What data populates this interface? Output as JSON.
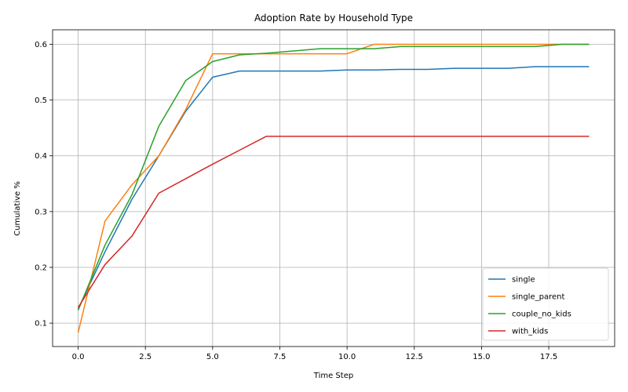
{
  "chart_data": {
    "type": "line",
    "title": "Adoption Rate by Household Type",
    "xlabel": "Time Step",
    "ylabel": "Cumulative %",
    "xlim": [
      -0.95,
      19.95
    ],
    "ylim": [
      0.058,
      0.626
    ],
    "xticks": [
      0.0,
      2.5,
      5.0,
      7.5,
      10.0,
      12.5,
      15.0,
      17.5
    ],
    "xtick_labels": [
      "0.0",
      "2.5",
      "5.0",
      "7.5",
      "10.0",
      "12.5",
      "15.0",
      "17.5"
    ],
    "yticks": [
      0.1,
      0.2,
      0.3,
      0.4,
      0.5,
      0.6
    ],
    "ytick_labels": [
      "0.1",
      "0.2",
      "0.3",
      "0.4",
      "0.5",
      "0.6"
    ],
    "grid": true,
    "legend_position": "lower-right",
    "x": [
      0,
      1,
      2,
      3,
      4,
      5,
      6,
      7,
      8,
      9,
      10,
      11,
      12,
      13,
      14,
      15,
      16,
      17,
      18,
      19
    ],
    "series": [
      {
        "name": "single",
        "color": "#1f77b4",
        "values": [
          0.125,
          0.228,
          0.322,
          0.4,
          0.48,
          0.541,
          0.552,
          0.552,
          0.552,
          0.552,
          0.554,
          0.554,
          0.555,
          0.555,
          0.557,
          0.557,
          0.557,
          0.56,
          0.56,
          0.56
        ]
      },
      {
        "name": "single_parent",
        "color": "#ff7f0e",
        "values": [
          0.083,
          0.283,
          0.348,
          0.4,
          0.483,
          0.583,
          0.583,
          0.583,
          0.583,
          0.583,
          0.583,
          0.6,
          0.6,
          0.6,
          0.6,
          0.6,
          0.6,
          0.6,
          0.6,
          0.6
        ]
      },
      {
        "name": "couple_no_kids",
        "color": "#2ca02c",
        "values": [
          0.123,
          0.24,
          0.33,
          0.453,
          0.535,
          0.569,
          0.581,
          0.584,
          0.588,
          0.592,
          0.592,
          0.592,
          0.596,
          0.596,
          0.596,
          0.596,
          0.596,
          0.596,
          0.6,
          0.6
        ]
      },
      {
        "name": "with_kids",
        "color": "#d62728",
        "values": [
          0.128,
          0.205,
          0.256,
          0.333,
          0.359,
          0.385,
          0.41,
          0.435,
          0.435,
          0.435,
          0.435,
          0.435,
          0.435,
          0.435,
          0.435,
          0.435,
          0.435,
          0.435,
          0.435,
          0.435
        ]
      }
    ]
  }
}
